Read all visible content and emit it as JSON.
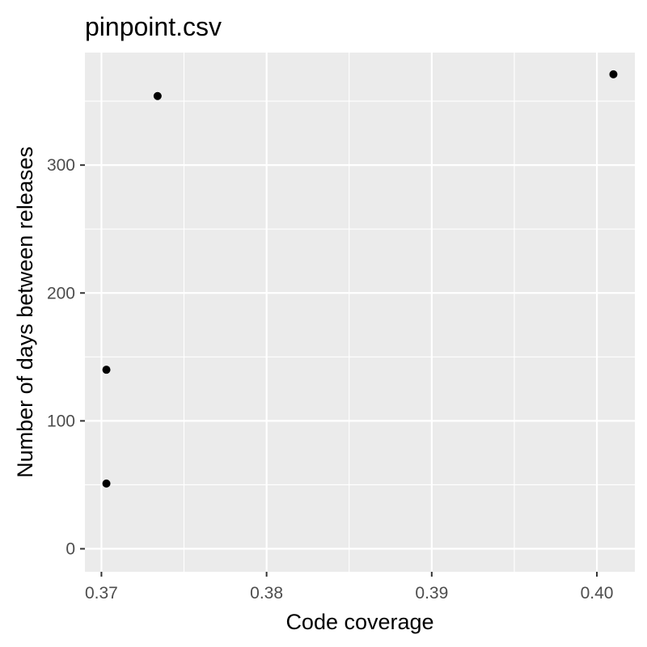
{
  "chart_data": {
    "type": "scatter",
    "title": "pinpoint.csv",
    "xlabel": "Code coverage",
    "ylabel": "Number of days between releases",
    "xlim": [
      0.369,
      0.4023
    ],
    "ylim": [
      -18,
      388
    ],
    "x_ticks": [
      0.37,
      0.38,
      0.39,
      0.4
    ],
    "x_tick_labels": [
      "0.37",
      "0.38",
      "0.39",
      "0.40"
    ],
    "x_minor_ticks": [
      0.375,
      0.385,
      0.395
    ],
    "y_ticks": [
      0,
      100,
      200,
      300
    ],
    "y_tick_labels": [
      "0",
      "100",
      "200",
      "300"
    ],
    "y_minor_ticks": [
      50,
      150,
      250,
      350
    ],
    "grid": true,
    "series": [
      {
        "name": "pinpoint",
        "x": [
          0.3703,
          0.3703,
          0.3734,
          0.401
        ],
        "y": [
          51,
          140,
          354,
          371
        ]
      }
    ],
    "colors": {
      "panel_background": "#ebebeb",
      "grid_line": "#ffffff",
      "point": "#000000",
      "tick": "#333333"
    }
  }
}
